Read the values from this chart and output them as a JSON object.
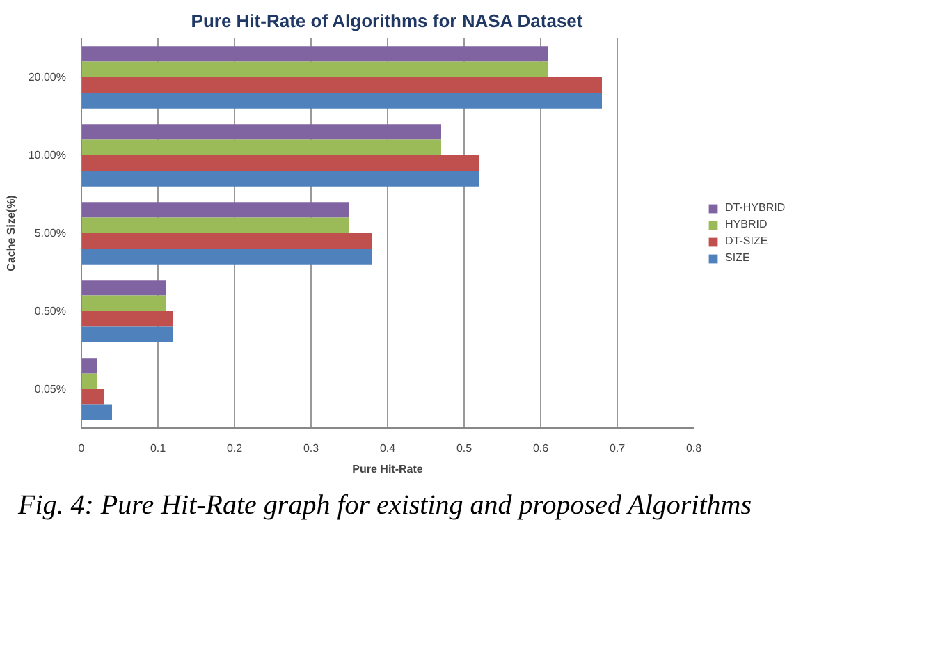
{
  "chart_data": {
    "type": "bar",
    "orientation": "horizontal",
    "title": "Pure Hit-Rate of Algorithms for NASA Dataset",
    "xlabel": "Pure Hit-Rate",
    "ylabel": "Cache Size(%)",
    "categories": [
      "20.00%",
      "10.00%",
      "5.00%",
      "0.50%",
      "0.05%"
    ],
    "series": [
      {
        "name": "DT-HYBRID",
        "color": "#8064a2",
        "values": [
          0.61,
          0.47,
          0.35,
          0.11,
          0.02
        ]
      },
      {
        "name": "HYBRID",
        "color": "#9bbb59",
        "values": [
          0.61,
          0.47,
          0.35,
          0.11,
          0.02
        ]
      },
      {
        "name": "DT-SIZE",
        "color": "#c0504d",
        "values": [
          0.68,
          0.52,
          0.38,
          0.12,
          0.03
        ]
      },
      {
        "name": "SIZE",
        "color": "#4f81bd",
        "values": [
          0.68,
          0.52,
          0.38,
          0.12,
          0.04
        ]
      }
    ],
    "xlim": [
      0,
      0.8
    ],
    "xticks": [
      0,
      0.1,
      0.2,
      0.3,
      0.4,
      0.5,
      0.6,
      0.7,
      0.8
    ],
    "grid": "x",
    "legend": "right",
    "annotations": [
      "Fig.  4: Pure Hit-Rate graph  for existing and proposed Algorithms"
    ]
  }
}
